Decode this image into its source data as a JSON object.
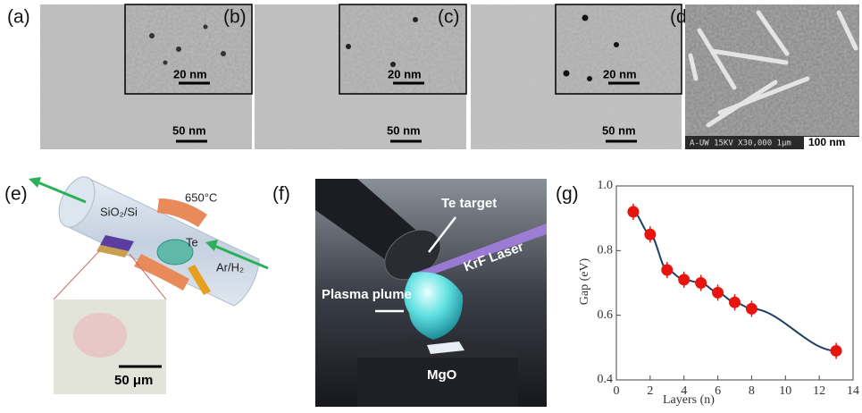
{
  "micrographs": [
    {
      "label": "(a)",
      "inset_scale": "20 nm",
      "scale": "50 nm"
    },
    {
      "label": "(b)",
      "inset_scale": "20 nm",
      "scale": "50 nm"
    },
    {
      "label": "(c)",
      "inset_scale": "20 nm",
      "scale": "50 nm"
    }
  ],
  "sem": {
    "label": "(d)",
    "info": "A-UW   15KV   X30,000  1μm",
    "scale": "100 nm"
  },
  "diagram": {
    "label": "(e)",
    "substrate": "SiO₂/Si",
    "temperature": "650°C",
    "source": "Te",
    "gas": "Ar/H₂",
    "scale": "50 μm"
  },
  "photo": {
    "label": "(f)",
    "target": "Te target",
    "laser": "KrF Laser",
    "plume": "Plasma plume",
    "substrate": "MgO"
  },
  "chart_data": {
    "type": "scatter",
    "label": "(g)",
    "x_label": "Layers (n)",
    "y_label": "Gap (eV)",
    "x": [
      1,
      2,
      3,
      4,
      5,
      6,
      7,
      8,
      13
    ],
    "values": [
      0.92,
      0.85,
      0.74,
      0.71,
      0.7,
      0.67,
      0.64,
      0.62,
      0.49
    ],
    "errors": [
      0.025,
      0.025,
      0.025,
      0.025,
      0.025,
      0.025,
      0.025,
      0.025,
      0.025
    ],
    "color": "#e8150f",
    "line_color": "#1f3f66",
    "xlim": [
      0,
      14
    ],
    "xticks": [
      0,
      2,
      4,
      6,
      8,
      10,
      12,
      14
    ],
    "ylim": [
      0.4,
      1.0
    ],
    "yticks": [
      0.4,
      0.6,
      0.8,
      {
        "value": 1.0,
        "label": "1.0"
      }
    ]
  }
}
